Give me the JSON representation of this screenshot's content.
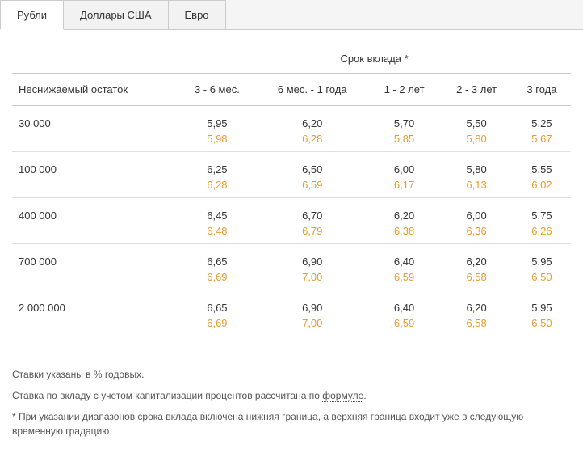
{
  "tabs": [
    {
      "label": "Рубли",
      "active": true
    },
    {
      "label": "Доллары США",
      "active": false
    },
    {
      "label": "Евро",
      "active": false
    }
  ],
  "table": {
    "group_header": "Срок вклада *",
    "row_header": "Неснижаемый остаток",
    "columns": [
      "3 - 6 мес.",
      "6 мес. - 1 года",
      "1 - 2 лет",
      "2 - 3 лет",
      "3 года"
    ],
    "rows": [
      {
        "label": "30 000",
        "top": [
          "5,95",
          "6,20",
          "5,70",
          "5,50",
          "5,25"
        ],
        "bottom": [
          "5,98",
          "6,28",
          "5,85",
          "5,80",
          "5,67"
        ]
      },
      {
        "label": "100 000",
        "top": [
          "6,25",
          "6,50",
          "6,00",
          "5,80",
          "5,55"
        ],
        "bottom": [
          "6,28",
          "6,59",
          "6,17",
          "6,13",
          "6,02"
        ]
      },
      {
        "label": "400 000",
        "top": [
          "6,45",
          "6,70",
          "6,20",
          "6,00",
          "5,75"
        ],
        "bottom": [
          "6,48",
          "6,79",
          "6,38",
          "6,36",
          "6,26"
        ]
      },
      {
        "label": "700 000",
        "top": [
          "6,65",
          "6,90",
          "6,40",
          "6,20",
          "5,95"
        ],
        "bottom": [
          "6,69",
          "7,00",
          "6,59",
          "6,58",
          "6,50"
        ]
      },
      {
        "label": "2 000 000",
        "top": [
          "6,65",
          "6,90",
          "6,40",
          "6,20",
          "5,95"
        ],
        "bottom": [
          "6,69",
          "7,00",
          "6,59",
          "6,58",
          "6,50"
        ]
      }
    ]
  },
  "notes": {
    "line1": "Ставки указаны в % годовых.",
    "line2_pre": "Ставка по вкладу с учетом капитализации процентов рассчитана по ",
    "line2_link": "формуле",
    "line2_post": ".",
    "line3": "* При указании диапазонов срока вклада включена нижняя граница, а верхняя граница входит уже в следующую временную градацию."
  }
}
